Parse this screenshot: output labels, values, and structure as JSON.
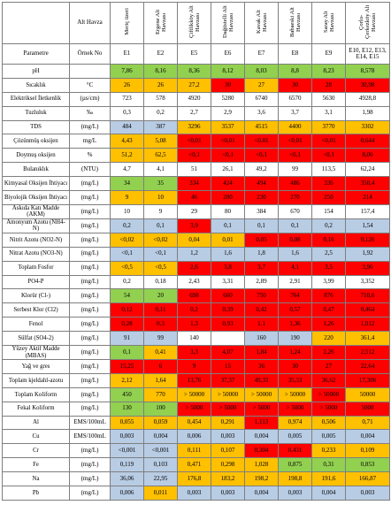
{
  "table": {
    "header": {
      "label": "Alt Havza",
      "basins": [
        "Meriç üzeri",
        "Ergene Alt Havzası",
        "Çiftlikköy Alt Havzası",
        "Dağüstelli Alt Havzası",
        "Kavak Alt Havzası",
        "Babaeski Alt Havzası",
        "Saray Alt Havzası",
        "Çorlu-Çerkezköy Alt Havzası"
      ]
    },
    "subheader": {
      "parameter": "Parametre",
      "sample": "Örnek No",
      "samples": [
        "E1",
        "E2",
        "E5",
        "E6",
        "E7",
        "E8",
        "E9",
        "E10, E12, E13, E14, E15"
      ]
    },
    "palette": {
      "g": "#92d050",
      "b": "#b8cce4",
      "y": "#ffc000",
      "r": "#ff0000",
      "w": "#ffffff"
    },
    "rows": [
      {
        "name": "pH",
        "values": [
          "7,86",
          "8,16",
          "8,36",
          "8,12",
          "8,03",
          "8,8",
          "8,23",
          "8,578"
        ],
        "fills": "gggggggg"
      },
      {
        "name": "Sıcaklık",
        "unit": "°C",
        "values": [
          "26",
          "26",
          "27,2",
          "30",
          "27",
          "30",
          "28",
          "30,98"
        ],
        "fills": "yyyryrrr"
      },
      {
        "name": "Elektriksel İletkenlik",
        "unit": "(µs/cm)",
        "values": [
          "723",
          "578",
          "4920",
          "5280",
          "6740",
          "6570",
          "5630",
          "4928,8"
        ],
        "fills": "wwwwwwww"
      },
      {
        "name": "Tuzluluk",
        "unit": "‰",
        "values": [
          "0,3",
          "0,2",
          "2,7",
          "2,9",
          "3,6",
          "3,7",
          "3,1",
          "1,98"
        ],
        "fills": "wwwwwwww"
      },
      {
        "name": "TDS",
        "unit": "(mg/L)",
        "values": [
          "484",
          "387",
          "3296",
          "3537",
          "4515",
          "4400",
          "3770",
          "3302"
        ],
        "fills": "bbyyyyyy"
      },
      {
        "name": "Çözünmüş oksijen",
        "unit": "mg/L",
        "values": [
          "4,43",
          "5,08",
          "<0,01",
          "<0,01",
          "<0,01",
          "<0,01",
          "<0,01",
          "0,644"
        ],
        "fills": "yyrrrrrr"
      },
      {
        "name": "Doymuş oksijen",
        "unit": "%",
        "values": [
          "51,2",
          "62,5",
          "<0,1",
          "<0,1",
          "<0,1",
          "<0,1",
          "<0,1",
          "8,06"
        ],
        "fills": "yyrrrrrr"
      },
      {
        "name": "Bulanıklık",
        "unit": "(NTU)",
        "values": [
          "4,7",
          "4,1",
          "51",
          "26,1",
          "49,2",
          "99",
          "113,5",
          "62,24"
        ],
        "fills": "wwwwwwww"
      },
      {
        "name": "Kimyasal Oksijen İhtiyacı",
        "unit": "(mg/L)",
        "values": [
          "34",
          "35",
          "334",
          "424",
          "494",
          "486",
          "336",
          "350,4"
        ],
        "fills": "ggrrrrrr"
      },
      {
        "name": "Biyolojik Oksijen İhtiyacı",
        "unit": "(mg/L)",
        "values": [
          "9",
          "10",
          "46",
          "200",
          "230",
          "270",
          "250",
          "214"
        ],
        "fills": "yyrrrrrr"
      },
      {
        "name": "Askıda Katı Madde (AKM)",
        "unit": "(mg/L)",
        "values": [
          "10",
          "9",
          "29",
          "80",
          "384",
          "670",
          "154",
          "157,4"
        ],
        "fills": "wwwwwwww"
      },
      {
        "name": "Amonyum Azotu (NH4-N)",
        "unit": "(mg/L)",
        "values": [
          "0,2",
          "0,1",
          "3,9",
          "0,1",
          "0,1",
          "0,1",
          "0,2",
          "1,54"
        ],
        "fills": "bbrbbbbb"
      },
      {
        "name": "Nitrit Azotu (NO2-N)",
        "unit": "(mg/L)",
        "values": [
          "<0,02",
          "<0,02",
          "0,04",
          "0,01",
          "0,05",
          "0,08",
          "0,16",
          "0,126"
        ],
        "fills": "yyyyrrrr"
      },
      {
        "name": "Nitrat Azotu (NO3-N)",
        "unit": "(mg/L)",
        "values": [
          "<0,1",
          "<0,1",
          "1,2",
          "1,6",
          "1,8",
          "1,6",
          "2,5",
          "1,92"
        ],
        "fills": "bbbbbbbb"
      },
      {
        "name": "Toplam Fosfor",
        "unit": "(mg/L)",
        "values": [
          "<0,5",
          "<0,5",
          "2,6",
          "3,8",
          "3,7",
          "4,1",
          "3,5",
          "3,96"
        ],
        "fills": "yyrrrrrr"
      },
      {
        "name": "PO4-P",
        "unit": "(mg/L)",
        "values": [
          "0,2",
          "0,18",
          "2,43",
          "3,31",
          "2,89",
          "2,91",
          "3,99",
          "3,352"
        ],
        "fills": "wwwwwwww"
      },
      {
        "name": "Klorür (Cl-)",
        "unit": "(mg/L)",
        "values": [
          "54",
          "20",
          "698",
          "660",
          "750",
          "764",
          "876",
          "710,6"
        ],
        "fills": "ggrrrrrr"
      },
      {
        "name": "Serbest Klor (Cl2)",
        "unit": "(mg/L)",
        "values": [
          "0,12",
          "0,11",
          "0,2",
          "0,39",
          "0,42",
          "0,57",
          "0,47",
          "0,464"
        ],
        "fills": "rrrrrrrr"
      },
      {
        "name": "Fenol",
        "unit": "(mg/L)",
        "values": [
          "0,28",
          "0,3",
          "1,3",
          "0,93",
          "1,1",
          "1,36",
          "1,26",
          "1,912"
        ],
        "fills": "rrrrrrrr"
      },
      {
        "name": "Sülfat (SO4-2)",
        "unit": "(mg/L)",
        "values": [
          "91",
          "99",
          "140",
          null,
          "160",
          "190",
          "220",
          "361,4"
        ],
        "fills": "bbwwbbyy"
      },
      {
        "name": "Yüzey Aktif Madde (MBAS)",
        "unit": "(mg/L)",
        "values": [
          "0,1",
          "0,41",
          "3,3",
          "4,07",
          "1,84",
          "1,24",
          "2,26",
          "2,512"
        ],
        "fills": "gyrrrrrr"
      },
      {
        "name": "Yağ ve gres",
        "unit": "(mg/L)",
        "values": [
          "15,25",
          "6",
          "9",
          "15",
          "36",
          "30",
          "27",
          "22,64"
        ],
        "fills": "rrrrrrrr"
      },
      {
        "name": "Toplam kjeldahl-azotu",
        "unit": "(mg/L)",
        "values": [
          "2,12",
          "1,64",
          "13,76",
          "37,37",
          "49,33",
          "35,33",
          "36,62",
          "17,306"
        ],
        "fills": "yyrrrrrr"
      },
      {
        "name": "Toplam Koliform",
        "unit": "(mg/L)",
        "values": [
          "450",
          "770",
          "> 50000",
          "> 50000",
          "> 50000",
          "> 50000",
          "> 50000",
          "50000"
        ],
        "fills": "gyyyyyry"
      },
      {
        "name": "Fekal Koliform",
        "unit": "(mg/L)",
        "values": [
          "130",
          "100",
          "> 5000",
          "> 5000",
          "> 5000",
          "> 5000",
          "> 5000",
          "5000"
        ],
        "fills": "ggrrrrrr"
      },
      {
        "name": "Al",
        "unit": "EMS/100mL",
        "values": [
          "0,055",
          "0,059",
          "0,454",
          "0,291",
          "1,113",
          "0,974",
          "0,506",
          "0,71"
        ],
        "fills": "yyyyryyy"
      },
      {
        "name": "Cu",
        "unit": "EMS/100mL",
        "values": [
          "0,003",
          "0,004",
          "0,006",
          "0,003",
          "0,004",
          "0,005",
          "0,005",
          "0,004"
        ],
        "fills": "bbbbbbbb"
      },
      {
        "name": "Cr",
        "unit": "(mg/L)",
        "values": [
          "<0,001",
          "<0,001",
          "0,111",
          "0,107",
          "0,304",
          "0,431",
          "0,233",
          "0,109"
        ],
        "fills": "bbyyrryy"
      },
      {
        "name": "Fe",
        "unit": "(mg/L)",
        "values": [
          "0,119",
          "0,103",
          "0,471",
          "0,298",
          "1,028",
          "0,875",
          "0,31",
          "0,853"
        ],
        "fills": "bbyyyggg"
      },
      {
        "name": "Na",
        "unit": "(mg/L)",
        "values": [
          "36,06",
          "22,95",
          "176,8",
          "183,2",
          "198,2",
          "198,8",
          "191,6",
          "166,87"
        ],
        "fills": "bbyyyyyy"
      },
      {
        "name": "Pb",
        "unit": "(mg/L)",
        "values": [
          "0,006",
          "0,011",
          "0,003",
          "0,003",
          "0,004",
          "0,003",
          "0,004",
          "0,003"
        ],
        "fills": "bybbbbbb"
      }
    ]
  }
}
